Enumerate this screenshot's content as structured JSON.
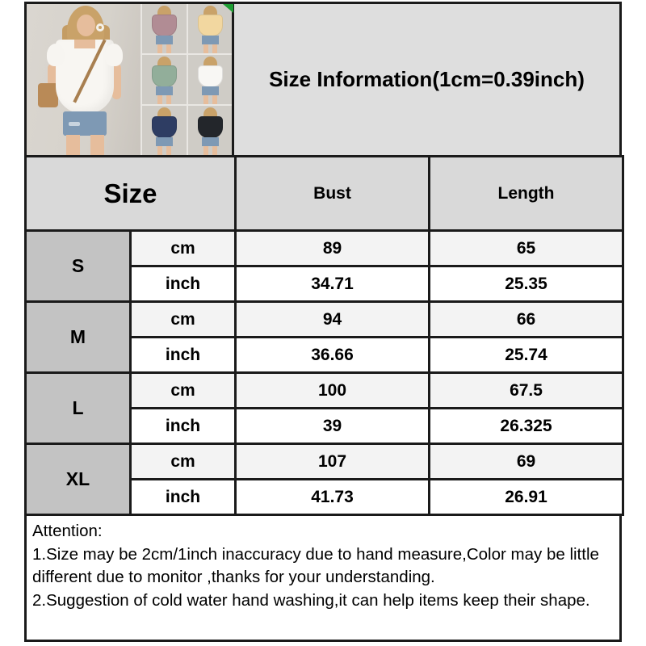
{
  "product": {
    "main_image_alt": "model wearing white square-neck puff-sleeve top with denim shorts",
    "variants": [
      {
        "name": "mauve",
        "color": "#b18c94"
      },
      {
        "name": "apricot",
        "color": "#f2d7a0"
      },
      {
        "name": "sage-green",
        "color": "#92ae9a"
      },
      {
        "name": "white",
        "color": "#f8f7f4"
      },
      {
        "name": "navy",
        "color": "#2e3d63"
      },
      {
        "name": "black",
        "color": "#23262b"
      }
    ]
  },
  "header": {
    "title": "Size Information(1cm=0.39inch)"
  },
  "size_table": {
    "columns": [
      "Size",
      "Bust",
      "Length"
    ],
    "unit_labels": [
      "cm",
      "inch"
    ],
    "rows": [
      {
        "size": "S",
        "cm": {
          "bust": "89",
          "length": "65"
        },
        "inch": {
          "bust": "34.71",
          "length": "25.35"
        }
      },
      {
        "size": "M",
        "cm": {
          "bust": "94",
          "length": "66"
        },
        "inch": {
          "bust": "36.66",
          "length": "25.74"
        }
      },
      {
        "size": "L",
        "cm": {
          "bust": "100",
          "length": "67.5"
        },
        "inch": {
          "bust": "39",
          "length": "26.325"
        }
      },
      {
        "size": "XL",
        "cm": {
          "bust": "107",
          "length": "69"
        },
        "inch": {
          "bust": "41.73",
          "length": "26.91"
        }
      }
    ]
  },
  "attention": {
    "title": "Attention:",
    "lines": [
      "1.Size may be 2cm/1inch inaccuracy due to hand measure,Color may be little different due to monitor ,thanks for your understanding.",
      "2.Suggestion of cold water hand washing,it can help items keep their shape."
    ]
  },
  "colors": {
    "table_border": "#1a1a1a",
    "top_section_bg": "#dedede",
    "header_row_bg": "#d9d9d9",
    "size_cell_bg": "#c3c3c3",
    "cm_row_bg": "#f3f3f3",
    "green_corner_mark": "#1e9e33"
  }
}
